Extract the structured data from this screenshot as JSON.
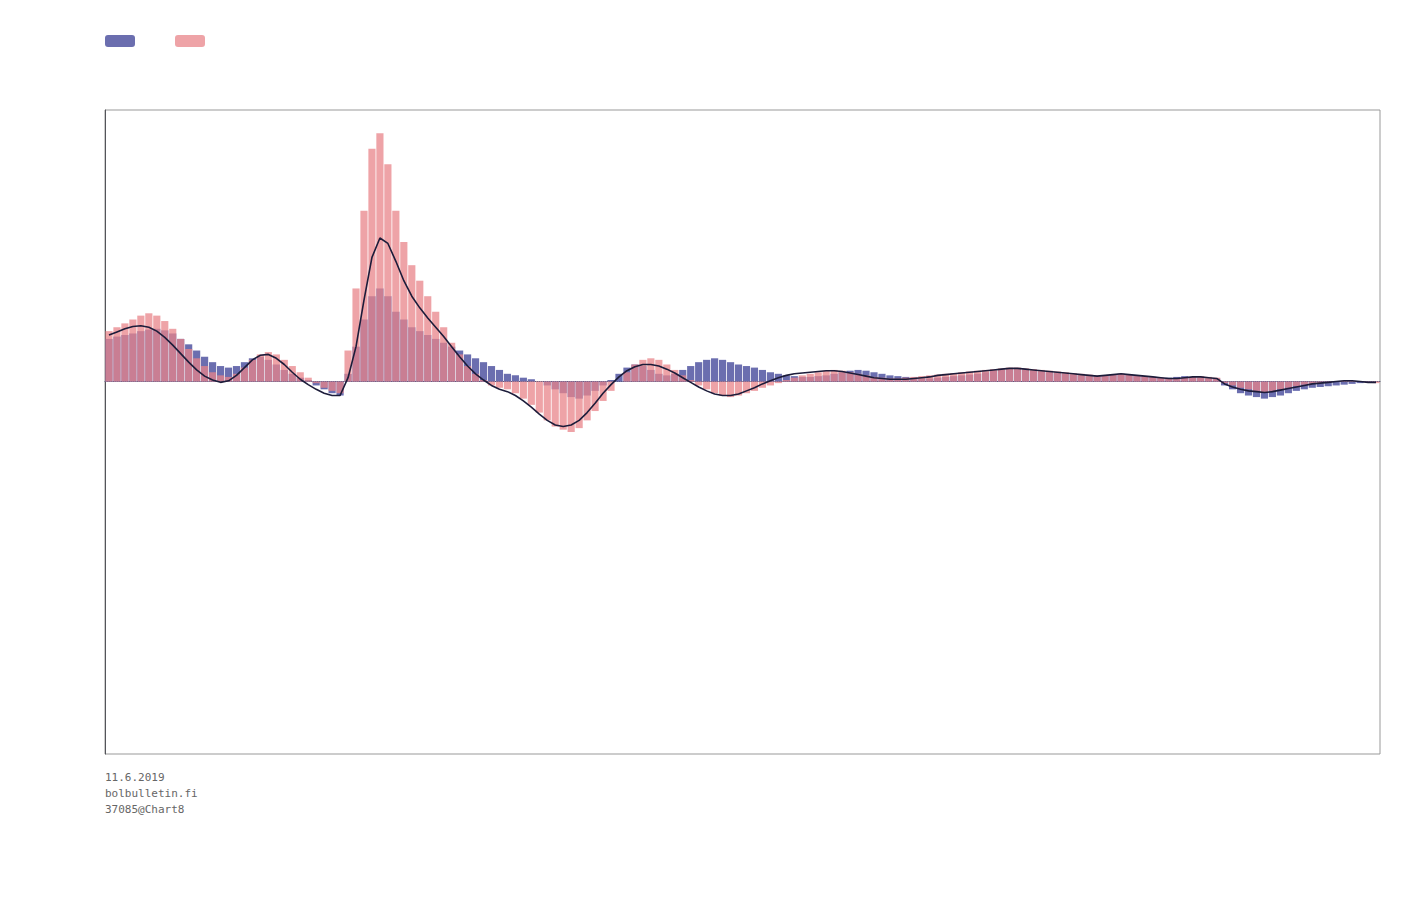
{
  "chart_data": {
    "type": "bar",
    "annotations": [
      "11.6.2019",
      "bolbulletin.fi",
      "37085@Chart8"
    ],
    "categories": [
      null,
      null,
      null,
      null,
      null,
      null,
      null,
      null,
      null,
      null,
      null,
      null,
      null,
      null,
      null,
      null,
      null,
      null,
      null,
      null,
      null,
      null,
      null,
      null,
      null,
      null,
      null,
      null,
      null,
      null,
      null,
      null,
      null,
      null,
      null,
      null,
      null,
      null,
      null,
      null,
      null,
      null,
      null,
      null,
      null,
      null,
      null,
      null,
      null,
      null,
      null,
      null,
      null,
      null,
      null,
      null,
      null,
      null,
      null,
      null,
      null,
      null,
      null,
      null,
      null,
      null,
      null,
      null,
      null,
      null,
      null,
      null,
      null,
      null,
      null,
      null,
      null,
      null,
      null,
      null,
      null,
      null,
      null,
      null,
      null,
      null,
      null,
      null,
      null,
      null,
      null,
      null,
      null,
      null,
      null,
      null,
      null,
      null,
      null,
      null,
      null,
      null,
      null,
      null,
      null,
      null,
      null,
      null,
      null,
      null,
      null,
      null,
      null,
      null,
      null,
      null,
      null,
      null,
      null,
      null,
      null,
      null,
      null,
      null,
      null,
      null,
      null,
      null,
      null,
      null,
      null,
      null,
      null,
      null,
      null,
      null,
      null,
      null,
      null,
      null,
      null,
      null,
      null,
      null,
      null,
      null,
      null,
      null,
      null,
      null,
      null,
      null,
      null,
      null,
      null,
      null,
      null,
      null,
      null,
      null
    ],
    "series": [
      {
        "type": "bar",
        "color": "#5b5ea6",
        "values": [
          0.55,
          0.58,
          0.6,
          0.62,
          0.65,
          0.67,
          0.68,
          0.66,
          0.62,
          0.55,
          0.48,
          0.4,
          0.32,
          0.25,
          0.2,
          0.18,
          0.2,
          0.25,
          0.3,
          0.32,
          0.28,
          0.22,
          0.15,
          0.1,
          0.05,
          0.02,
          -0.05,
          -0.1,
          -0.15,
          -0.18,
          0.1,
          0.45,
          0.8,
          1.1,
          1.2,
          1.1,
          0.9,
          0.8,
          0.7,
          0.65,
          0.6,
          0.55,
          0.5,
          0.45,
          0.4,
          0.35,
          0.3,
          0.25,
          0.2,
          0.15,
          0.1,
          0.08,
          0.05,
          0.03,
          0.0,
          -0.05,
          -0.1,
          -0.15,
          -0.2,
          -0.22,
          -0.18,
          -0.12,
          -0.05,
          0.02,
          0.1,
          0.18,
          0.22,
          0.2,
          0.15,
          0.1,
          0.08,
          0.1,
          0.15,
          0.2,
          0.25,
          0.28,
          0.3,
          0.28,
          0.25,
          0.22,
          0.2,
          0.18,
          0.15,
          0.12,
          0.1,
          0.08,
          0.07,
          0.06,
          0.06,
          0.07,
          0.08,
          0.1,
          0.12,
          0.14,
          0.15,
          0.14,
          0.12,
          0.1,
          0.08,
          0.07,
          0.06,
          0.05,
          0.04,
          0.04,
          0.05,
          0.06,
          0.07,
          0.08,
          0.09,
          0.1,
          0.12,
          0.14,
          0.15,
          0.16,
          0.16,
          0.15,
          0.14,
          0.13,
          0.12,
          0.11,
          0.1,
          0.09,
          0.08,
          0.07,
          0.07,
          0.08,
          0.09,
          0.1,
          0.09,
          0.08,
          0.07,
          0.06,
          0.05,
          0.05,
          0.06,
          0.07,
          0.06,
          0.05,
          0.04,
          0.04,
          -0.05,
          -0.1,
          -0.15,
          -0.18,
          -0.2,
          -0.22,
          -0.2,
          -0.18,
          -0.15,
          -0.12,
          -0.1,
          -0.08,
          -0.07,
          -0.06,
          -0.05,
          -0.04,
          -0.03,
          -0.02,
          -0.01,
          0.0
        ]
      },
      {
        "type": "bar",
        "color": "#e8848a",
        "values": [
          0.65,
          0.7,
          0.75,
          0.8,
          0.85,
          0.88,
          0.85,
          0.78,
          0.68,
          0.55,
          0.42,
          0.3,
          0.2,
          0.12,
          0.08,
          0.06,
          0.1,
          0.18,
          0.28,
          0.35,
          0.38,
          0.35,
          0.28,
          0.2,
          0.12,
          0.05,
          -0.02,
          -0.08,
          -0.12,
          -0.15,
          0.4,
          1.2,
          2.2,
          3.0,
          3.2,
          2.8,
          2.2,
          1.8,
          1.5,
          1.3,
          1.1,
          0.9,
          0.7,
          0.5,
          0.35,
          0.2,
          0.1,
          0.02,
          -0.05,
          -0.08,
          -0.1,
          -0.15,
          -0.22,
          -0.3,
          -0.4,
          -0.5,
          -0.58,
          -0.62,
          -0.65,
          -0.6,
          -0.5,
          -0.38,
          -0.25,
          -0.12,
          0.0,
          0.12,
          0.22,
          0.28,
          0.3,
          0.28,
          0.22,
          0.15,
          0.08,
          0.02,
          -0.05,
          -0.1,
          -0.15,
          -0.18,
          -0.2,
          -0.18,
          -0.15,
          -0.12,
          -0.08,
          -0.05,
          -0.02,
          0.02,
          0.05,
          0.08,
          0.1,
          0.12,
          0.14,
          0.15,
          0.14,
          0.12,
          0.1,
          0.08,
          0.06,
          0.05,
          0.04,
          0.04,
          0.05,
          0.06,
          0.07,
          0.08,
          0.09,
          0.1,
          0.11,
          0.12,
          0.13,
          0.14,
          0.15,
          0.16,
          0.17,
          0.18,
          0.18,
          0.17,
          0.16,
          0.15,
          0.14,
          0.13,
          0.12,
          0.11,
          0.1,
          0.09,
          0.08,
          0.08,
          0.09,
          0.1,
          0.09,
          0.08,
          0.07,
          0.06,
          0.05,
          0.04,
          0.04,
          0.05,
          0.06,
          0.07,
          0.06,
          0.05,
          -0.02,
          -0.05,
          -0.08,
          -0.1,
          -0.12,
          -0.14,
          -0.12,
          -0.1,
          -0.08,
          -0.06,
          -0.04,
          -0.03,
          -0.02,
          -0.01,
          0.0,
          0.01,
          0.01,
          0.0,
          -0.01,
          -0.02
        ]
      },
      {
        "type": "line",
        "color": "#1c1c3a",
        "values": [
          0.6,
          0.64,
          0.68,
          0.71,
          0.72,
          0.7,
          0.65,
          0.57,
          0.47,
          0.36,
          0.25,
          0.15,
          0.07,
          0.02,
          -0.01,
          0.01,
          0.08,
          0.18,
          0.28,
          0.34,
          0.35,
          0.3,
          0.22,
          0.12,
          0.03,
          -0.04,
          -0.1,
          -0.15,
          -0.18,
          -0.18,
          0.05,
          0.45,
          1.05,
          1.6,
          1.85,
          1.78,
          1.55,
          1.3,
          1.1,
          0.95,
          0.82,
          0.7,
          0.58,
          0.45,
          0.32,
          0.2,
          0.1,
          0.02,
          -0.05,
          -0.1,
          -0.13,
          -0.18,
          -0.25,
          -0.33,
          -0.42,
          -0.5,
          -0.56,
          -0.58,
          -0.56,
          -0.5,
          -0.4,
          -0.28,
          -0.15,
          -0.04,
          0.06,
          0.14,
          0.19,
          0.22,
          0.22,
          0.2,
          0.16,
          0.11,
          0.05,
          -0.01,
          -0.07,
          -0.12,
          -0.16,
          -0.18,
          -0.18,
          -0.16,
          -0.12,
          -0.08,
          -0.03,
          0.01,
          0.05,
          0.08,
          0.1,
          0.11,
          0.12,
          0.13,
          0.14,
          0.14,
          0.13,
          0.11,
          0.09,
          0.07,
          0.05,
          0.04,
          0.03,
          0.03,
          0.03,
          0.04,
          0.05,
          0.06,
          0.08,
          0.09,
          0.1,
          0.11,
          0.12,
          0.13,
          0.14,
          0.15,
          0.16,
          0.17,
          0.17,
          0.16,
          0.15,
          0.14,
          0.13,
          0.12,
          0.11,
          0.1,
          0.09,
          0.08,
          0.07,
          0.08,
          0.09,
          0.1,
          0.09,
          0.08,
          0.07,
          0.06,
          0.05,
          0.04,
          0.04,
          0.05,
          0.06,
          0.06,
          0.05,
          0.04,
          -0.03,
          -0.07,
          -0.1,
          -0.12,
          -0.13,
          -0.14,
          -0.13,
          -0.11,
          -0.09,
          -0.07,
          -0.05,
          -0.03,
          -0.02,
          -0.01,
          0.0,
          0.01,
          0.01,
          0.0,
          -0.01,
          -0.01
        ]
      }
    ],
    "ylim": [
      -4.8,
      3.5
    ],
    "grid": false,
    "legend": "upper left",
    "tick_labels": false
  }
}
